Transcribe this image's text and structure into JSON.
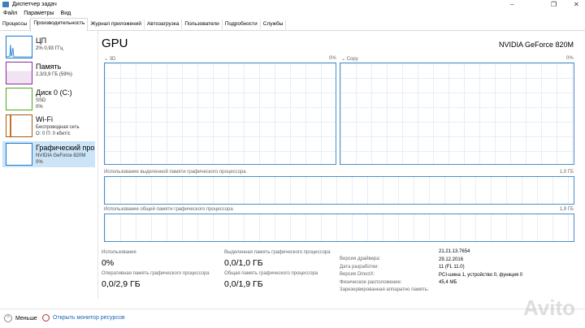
{
  "window": {
    "title": "Диспетчер задач",
    "icon": "task-manager-icon"
  },
  "menu": [
    "Файл",
    "Параметры",
    "Вид"
  ],
  "tabs": [
    "Процессы",
    "Производительность",
    "Журнал приложений",
    "Автозагрузка",
    "Пользователи",
    "Подробности",
    "Службы"
  ],
  "active_tab": 1,
  "sidebar": [
    {
      "name": "ЦП",
      "l1": "2% 0,93 ГГц",
      "l2": "",
      "color": "#1a7bd0"
    },
    {
      "name": "Память",
      "l1": "2,3/3,9 ГБ (59%)",
      "l2": "",
      "color": "#8b2c9e"
    },
    {
      "name": "Диск 0 (C:)",
      "l1": "SSD",
      "l2": "0%",
      "color": "#4da61b"
    },
    {
      "name": "Wi-Fi",
      "l1": "Беспроводная сеть",
      "l2": "О: 0 П: 0 кбит/с",
      "color": "#a85a12"
    },
    {
      "name": "Графический про",
      "l1": "NVIDIA GeForce 820M",
      "l2": "0%",
      "color": "#1a7bd0"
    }
  ],
  "main": {
    "title": "GPU",
    "device": "NVIDIA GeForce 820M",
    "engines": [
      {
        "name": "3D",
        "value": "0%"
      },
      {
        "name": "Copy",
        "value": "0%"
      }
    ],
    "dedicated_label": "Использование выделенной памяти графического процессора",
    "dedicated_max": "1,0 ГБ",
    "shared_label": "Использование общей памяти графического процессора",
    "shared_max": "1,9 ГБ",
    "stats": [
      {
        "label": "Использование",
        "value": "0%"
      },
      {
        "label": "Выделенная память графического процессора",
        "value": "0,0/1,0 ГБ"
      },
      {
        "label": "Оперативная память графического процессора",
        "value": "0,0/2,9 ГБ"
      },
      {
        "label": "Общая память графического процессора",
        "value": "0,0/1,9 ГБ"
      }
    ],
    "info": [
      {
        "k": "Версия драйвера:",
        "v": "21.21.13.7654"
      },
      {
        "k": "Дата разработки:",
        "v": "29.12.2016"
      },
      {
        "k": "Версия DirectX:",
        "v": "11 (FL 11.0)"
      },
      {
        "k": "Физическое расположение:",
        "v": "PCI-шина 1, устройство 0, функция 0"
      },
      {
        "k": "Зарезервированная аппаратно память:",
        "v": "45,4 МБ"
      }
    ]
  },
  "footer": {
    "less": "Меньше",
    "monitor": "Открыть монитор ресурсов"
  },
  "watermark": "Avito"
}
